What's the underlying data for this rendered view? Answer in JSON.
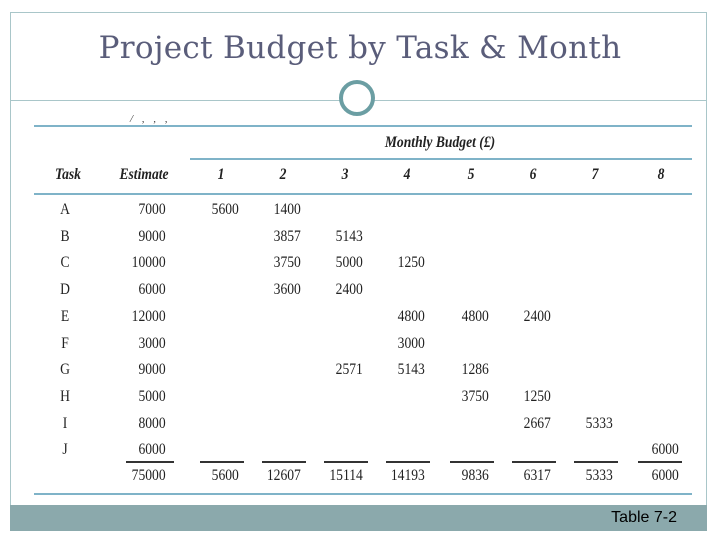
{
  "slide": {
    "title": "Project Budget by Task & Month",
    "footer_label": "Table 7-2"
  },
  "table": {
    "group_header": "Monthly Budget (£)",
    "headers": [
      "Task",
      "Estimate",
      "1",
      "2",
      "3",
      "4",
      "5",
      "6",
      "7",
      "8"
    ],
    "rows": [
      [
        "A",
        "7000",
        "5600",
        "1400",
        "",
        "",
        "",
        "",
        "",
        ""
      ],
      [
        "B",
        "9000",
        "",
        "3857",
        "5143",
        "",
        "",
        "",
        "",
        ""
      ],
      [
        "C",
        "10000",
        "",
        "3750",
        "5000",
        "1250",
        "",
        "",
        "",
        ""
      ],
      [
        "D",
        "6000",
        "",
        "3600",
        "2400",
        "",
        "",
        "",
        "",
        ""
      ],
      [
        "E",
        "12000",
        "",
        "",
        "",
        "4800",
        "4800",
        "2400",
        "",
        ""
      ],
      [
        "F",
        "3000",
        "",
        "",
        "",
        "3000",
        "",
        "",
        "",
        ""
      ],
      [
        "G",
        "9000",
        "",
        "",
        "2571",
        "5143",
        "1286",
        "",
        "",
        ""
      ],
      [
        "H",
        "5000",
        "",
        "",
        "",
        "",
        "3750",
        "1250",
        "",
        ""
      ],
      [
        "I",
        "8000",
        "",
        "",
        "",
        "",
        "",
        "2667",
        "5333",
        ""
      ],
      [
        "J",
        "6000",
        "",
        "",
        "",
        "",
        "",
        "",
        "",
        "6000"
      ]
    ],
    "totals": [
      "",
      "75000",
      "5600",
      "12607",
      "15114",
      "14193",
      "9836",
      "6317",
      "5333",
      "6000"
    ]
  }
}
